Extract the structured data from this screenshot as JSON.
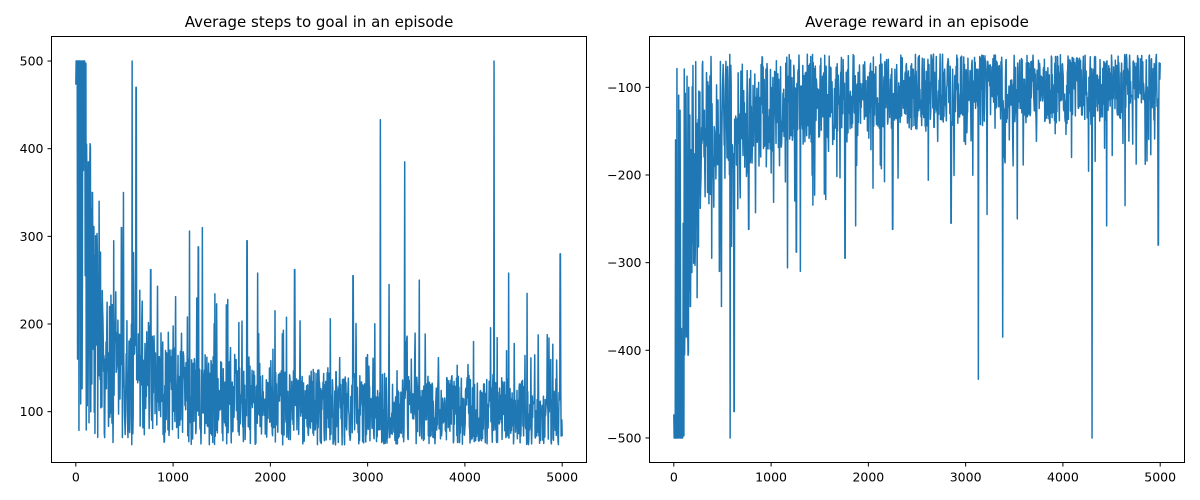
{
  "chart_data": [
    {
      "type": "line",
      "title": "Average steps to goal in an episode",
      "xlabel": "",
      "ylabel": "",
      "xlim": [
        -250,
        5250
      ],
      "ylim": [
        42,
        528
      ],
      "xticks": [
        0,
        1000,
        2000,
        3000,
        4000,
        5000
      ],
      "yticks": [
        100,
        200,
        300,
        400,
        500
      ],
      "grid": false,
      "legend": "none",
      "series": [
        {
          "color": "#1f77b4",
          "x_range": [
            0,
            5000
          ],
          "trend": {
            "x": [
              0,
              30,
              60,
              100,
              150,
              200,
              300,
              400,
              600,
              800,
              1000,
              1500,
              2000,
              2500,
              3000,
              3500,
              4000,
              4500,
              5000
            ],
            "y": [
              480,
              420,
              360,
              300,
              240,
              195,
              160,
              145,
              135,
              125,
              118,
              112,
              108,
              105,
              103,
              102,
              102,
              101,
              100
            ]
          },
          "spikes": [
            {
              "x": 5,
              "y": 500
            },
            {
              "x": 15,
              "y": 500
            },
            {
              "x": 30,
              "y": 500
            },
            {
              "x": 45,
              "y": 500
            },
            {
              "x": 60,
              "y": 500
            },
            {
              "x": 75,
              "y": 500
            },
            {
              "x": 90,
              "y": 500
            },
            {
              "x": 110,
              "y": 405
            },
            {
              "x": 130,
              "y": 385
            },
            {
              "x": 170,
              "y": 350
            },
            {
              "x": 240,
              "y": 340
            },
            {
              "x": 470,
              "y": 310
            },
            {
              "x": 490,
              "y": 350
            },
            {
              "x": 580,
              "y": 500
            },
            {
              "x": 620,
              "y": 470
            },
            {
              "x": 770,
              "y": 262
            },
            {
              "x": 1170,
              "y": 306
            },
            {
              "x": 1260,
              "y": 288
            },
            {
              "x": 1300,
              "y": 310
            },
            {
              "x": 1760,
              "y": 295
            },
            {
              "x": 1870,
              "y": 258
            },
            {
              "x": 2250,
              "y": 262
            },
            {
              "x": 2850,
              "y": 255
            },
            {
              "x": 3130,
              "y": 433
            },
            {
              "x": 3220,
              "y": 245
            },
            {
              "x": 3380,
              "y": 385
            },
            {
              "x": 3530,
              "y": 250
            },
            {
              "x": 4300,
              "y": 500
            },
            {
              "x": 4450,
              "y": 258
            },
            {
              "x": 4640,
              "y": 235
            },
            {
              "x": 4980,
              "y": 280
            }
          ],
          "noise_range": [
            62,
            200
          ],
          "y_floor": 62
        }
      ]
    },
    {
      "type": "line",
      "title": "Average reward in an episode",
      "xlabel": "",
      "ylabel": "",
      "xlim": [
        -250,
        5250
      ],
      "ylim": [
        -528,
        -42
      ],
      "xticks": [
        0,
        1000,
        2000,
        3000,
        4000,
        5000
      ],
      "yticks": [
        -500,
        -400,
        -300,
        -200,
        -100
      ],
      "grid": false,
      "legend": "none",
      "series": [
        {
          "color": "#1f77b4",
          "x_range": [
            0,
            5000
          ],
          "trend": {
            "x": [
              0,
              30,
              60,
              100,
              150,
              200,
              300,
              400,
              600,
              800,
              1000,
              1500,
              2000,
              2500,
              3000,
              3500,
              4000,
              4500,
              5000
            ],
            "y": [
              -480,
              -420,
              -360,
              -300,
              -240,
              -195,
              -160,
              -145,
              -135,
              -125,
              -118,
              -112,
              -108,
              -105,
              -103,
              -102,
              -102,
              -101,
              -100
            ]
          },
          "spikes": [
            {
              "x": 5,
              "y": -500
            },
            {
              "x": 15,
              "y": -500
            },
            {
              "x": 30,
              "y": -500
            },
            {
              "x": 45,
              "y": -500
            },
            {
              "x": 60,
              "y": -500
            },
            {
              "x": 75,
              "y": -500
            },
            {
              "x": 90,
              "y": -500
            },
            {
              "x": 110,
              "y": -405
            },
            {
              "x": 130,
              "y": -385
            },
            {
              "x": 170,
              "y": -350
            },
            {
              "x": 240,
              "y": -340
            },
            {
              "x": 470,
              "y": -310
            },
            {
              "x": 490,
              "y": -350
            },
            {
              "x": 580,
              "y": -500
            },
            {
              "x": 620,
              "y": -470
            },
            {
              "x": 770,
              "y": -262
            },
            {
              "x": 1170,
              "y": -306
            },
            {
              "x": 1260,
              "y": -288
            },
            {
              "x": 1300,
              "y": -310
            },
            {
              "x": 1760,
              "y": -295
            },
            {
              "x": 1870,
              "y": -258
            },
            {
              "x": 2250,
              "y": -262
            },
            {
              "x": 2850,
              "y": -255
            },
            {
              "x": 3130,
              "y": -433
            },
            {
              "x": 3220,
              "y": -245
            },
            {
              "x": 3380,
              "y": -385
            },
            {
              "x": 3530,
              "y": -250
            },
            {
              "x": 4300,
              "y": -500
            },
            {
              "x": 4450,
              "y": -258
            },
            {
              "x": 4640,
              "y": -235
            },
            {
              "x": 4980,
              "y": -280
            }
          ],
          "noise_range": [
            -200,
            -62
          ],
          "y_ceiling": -62
        }
      ]
    }
  ]
}
